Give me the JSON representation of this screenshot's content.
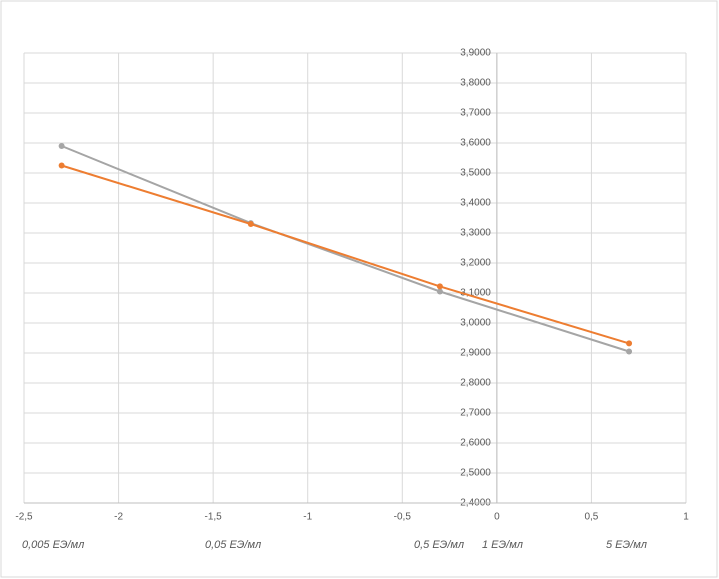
{
  "chart_data": {
    "type": "scatter-line",
    "xlim": [
      -2.5,
      1
    ],
    "xticks": [
      {
        "value": -2.5,
        "label": "-2,5"
      },
      {
        "value": -2,
        "label": "-2"
      },
      {
        "value": -1.5,
        "label": "-1,5"
      },
      {
        "value": -1,
        "label": "-1"
      },
      {
        "value": -0.5,
        "label": "-0,5"
      },
      0,
      {
        "value": 0.5,
        "label": "0,5"
      },
      1
    ],
    "ylim": [
      2.4,
      3.9
    ],
    "yticks": [
      {
        "value": 2.4,
        "label": "2,4000"
      },
      {
        "value": 2.5,
        "label": "2,5000"
      },
      {
        "value": 2.6,
        "label": "2,6000"
      },
      {
        "value": 2.7,
        "label": "2,7000"
      },
      {
        "value": 2.8,
        "label": "2,8000"
      },
      {
        "value": 2.9,
        "label": "2,9000"
      },
      {
        "value": 3.0,
        "label": "3,0000"
      },
      {
        "value": 3.1,
        "label": "3,1000"
      },
      {
        "value": 3.2,
        "label": "3,2000"
      },
      {
        "value": 3.3,
        "label": "3,3000"
      },
      {
        "value": 3.4,
        "label": "3,4000"
      },
      {
        "value": 3.5,
        "label": "3,5000"
      },
      {
        "value": 3.6,
        "label": "3,6000"
      },
      {
        "value": 3.7,
        "label": "3,7000"
      },
      {
        "value": 3.8,
        "label": "3,8000"
      },
      {
        "value": 3.9,
        "label": "3,9000"
      }
    ],
    "grid": true,
    "x": [
      -2.301,
      -1.301,
      -0.301,
      0.699
    ],
    "series": [
      {
        "color": "#a5a5a5",
        "values": [
          3.59,
          3.333,
          3.105,
          2.905
        ]
      },
      {
        "color": "#ed7d31",
        "values": [
          3.525,
          3.33,
          3.122,
          2.932
        ]
      }
    ],
    "annotations": [
      "0,005 ЕЭ/мл",
      "0,05 ЕЭ/мл",
      "0,5 ЕЭ/мл",
      "1 ЕЭ/мл",
      "5 ЕЭ/мл"
    ]
  }
}
